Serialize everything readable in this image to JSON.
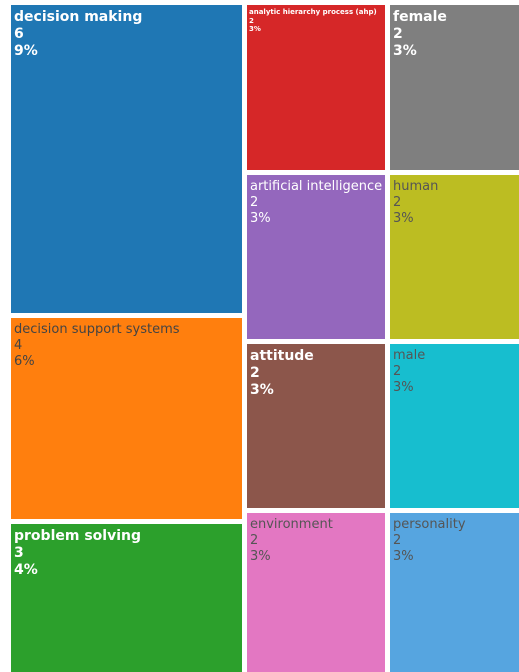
{
  "chart_data": {
    "type": "treemap",
    "items": [
      {
        "label": "decision making",
        "count": "6",
        "percent": "9%",
        "color": "#1f77b4",
        "text_color": "#ffffff"
      },
      {
        "label": "decision support systems",
        "count": "4",
        "percent": "6%",
        "color": "#ff7f0e",
        "text_color": "#444444"
      },
      {
        "label": "problem solving",
        "count": "3",
        "percent": "4%",
        "color": "#2ca02c",
        "text_color": "#ffffff"
      },
      {
        "label": "analytic hierarchy process (ahp)",
        "count": "2",
        "percent": "3%",
        "color": "#d62728",
        "text_color": "#ffffff"
      },
      {
        "label": "female",
        "count": "2",
        "percent": "3%",
        "color": "#7f7f7f",
        "text_color": "#ffffff"
      },
      {
        "label": "artificial intelligence",
        "count": "2",
        "percent": "3%",
        "color": "#9467bd",
        "text_color": "#ffffff"
      },
      {
        "label": "human",
        "count": "2",
        "percent": "3%",
        "color": "#bcbd22",
        "text_color": "#555555"
      },
      {
        "label": "attitude",
        "count": "2",
        "percent": "3%",
        "color": "#8c564b",
        "text_color": "#ffffff"
      },
      {
        "label": "male",
        "count": "2",
        "percent": "3%",
        "color": "#17becf",
        "text_color": "#555555"
      },
      {
        "label": "environment",
        "count": "2",
        "percent": "3%",
        "color": "#e377c2",
        "text_color": "#555555"
      },
      {
        "label": "personality",
        "count": "2",
        "percent": "3%",
        "color": "#56a5e0",
        "text_color": "#555555"
      }
    ]
  }
}
